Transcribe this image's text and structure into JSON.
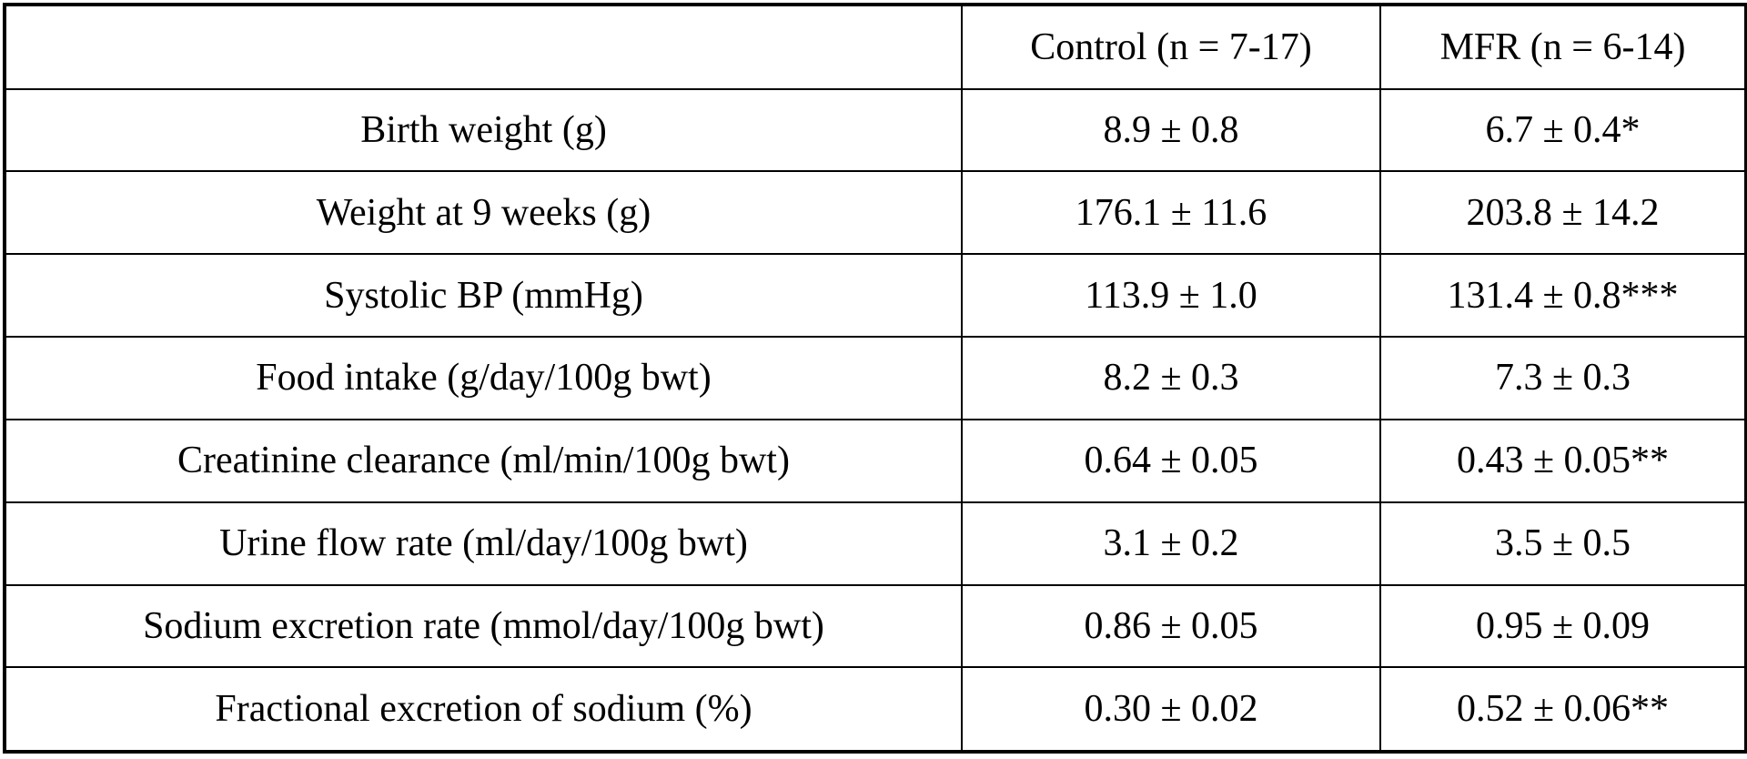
{
  "table": {
    "headers": [
      "",
      "Control (n = 7-17)",
      "MFR (n = 6-14)"
    ],
    "rows": [
      [
        "Birth weight (g)",
        "8.9 ± 0.8",
        "6.7 ± 0.4*"
      ],
      [
        "Weight at 9 weeks (g)",
        "176.1 ± 11.6",
        "203.8 ± 14.2"
      ],
      [
        "Systolic BP (mmHg)",
        "113.9 ± 1.0",
        "131.4 ± 0.8***"
      ],
      [
        "Food intake (g/day/100g bwt)",
        "8.2 ± 0.3",
        "7.3 ± 0.3"
      ],
      [
        "Creatinine clearance (ml/min/100g bwt)",
        "0.64 ± 0.05",
        "0.43 ± 0.05**"
      ],
      [
        "Urine flow rate (ml/day/100g bwt)",
        "3.1 ± 0.2",
        "3.5 ± 0.5"
      ],
      [
        "Sodium excretion rate (mmol/day/100g bwt)",
        "0.86 ± 0.05",
        "0.95 ± 0.09"
      ],
      [
        "Fractional excretion of sodium (%)",
        "0.30 ± 0.02",
        "0.52 ± 0.06**"
      ]
    ]
  }
}
